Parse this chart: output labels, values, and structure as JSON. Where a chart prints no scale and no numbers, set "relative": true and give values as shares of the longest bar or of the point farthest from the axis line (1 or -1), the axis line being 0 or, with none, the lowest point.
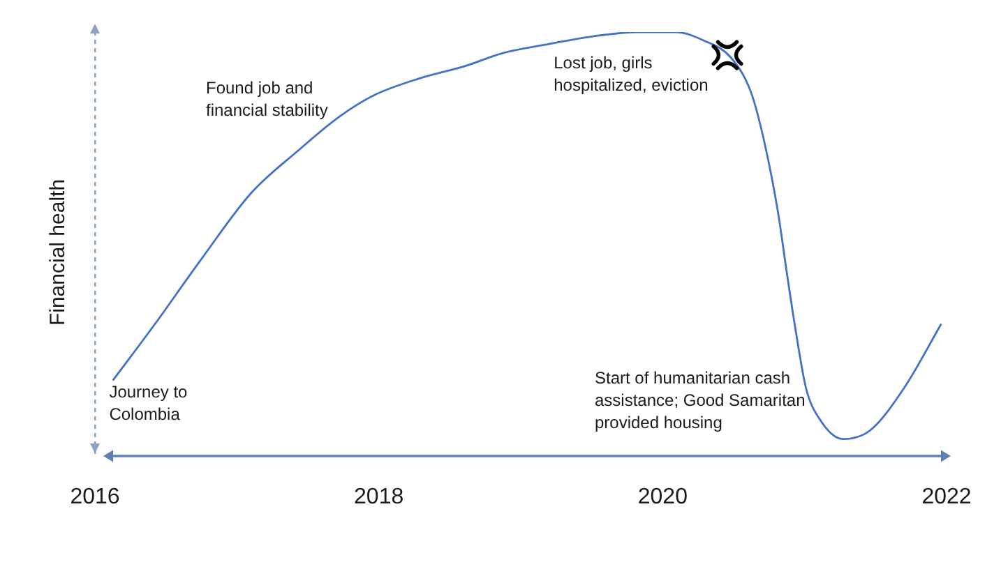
{
  "chart_data": {
    "type": "line",
    "ylabel": "Financial health",
    "x": [
      2016.13,
      2016.42,
      2016.74,
      2017.1,
      2017.43,
      2017.72,
      2017.96,
      2018.28,
      2018.61,
      2018.87,
      2019.17,
      2019.51,
      2019.83,
      2020.09,
      2020.29,
      2020.48,
      2020.62,
      2020.71,
      2020.81,
      2020.88,
      2020.94,
      2021.01,
      2021.1,
      2021.27,
      2021.46,
      2021.7,
      2021.96
    ],
    "series": [
      {
        "color": "#4472c4",
        "values": [
          0.18,
          0.31,
          0.46,
          0.62,
          0.72,
          0.8,
          0.85,
          0.89,
          0.92,
          0.95,
          0.97,
          0.99,
          1,
          1,
          0.98,
          0.94,
          0.86,
          0.75,
          0.58,
          0.42,
          0.29,
          0.16,
          0.09,
          0.04,
          0.06,
          0.16,
          0.31
        ]
      }
    ],
    "relative": true,
    "xlim": [
      2016,
      2022
    ],
    "xticks": [
      2016,
      2018,
      2020,
      2022
    ],
    "tick_labels": "x",
    "marker": "none",
    "annotations": [
      {
        "text": "Journey to Colombia",
        "x": 2016.13,
        "y": 0.18
      },
      {
        "text": "Found job and financial stability",
        "x": 2017.72,
        "y": 0.8
      },
      {
        "text": "Lost job, girls hospitalized, eviction",
        "x": 2020.41,
        "y": 0.95
      },
      {
        "text": "Start of humanitarian cash assistance; Good Samaritan provided housing",
        "x": 2021.27,
        "y": 0.04
      }
    ]
  }
}
